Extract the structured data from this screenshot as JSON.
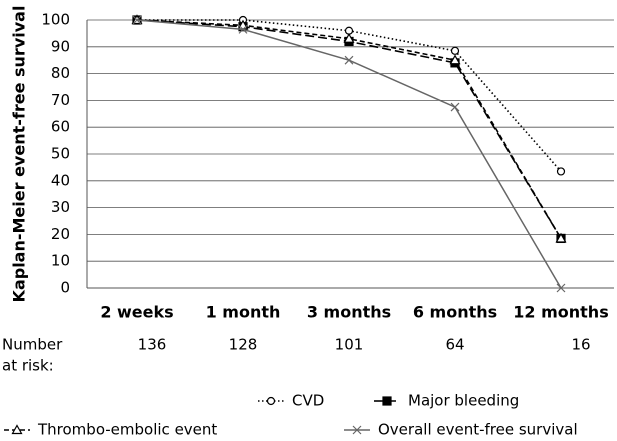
{
  "chart_data": {
    "type": "line",
    "y_label": "Kaplan-Meier event-free survival",
    "categories": [
      "2 weeks",
      "1 month",
      "3 months",
      "6 months",
      "12 months"
    ],
    "series": [
      {
        "name": "CVD",
        "color": "#000000",
        "values": [
          100,
          100,
          96,
          88.5,
          43.5
        ]
      },
      {
        "name": "Major bleeding",
        "color": "#000000",
        "values": [
          100,
          97.5,
          92,
          84,
          18.5
        ]
      },
      {
        "name": "Thrombo-embolic event",
        "color": "#000000",
        "values": [
          100,
          98,
          93,
          85,
          18.5
        ]
      },
      {
        "name": "Overall event-free survival",
        "color": "#666666",
        "values": [
          100,
          96.5,
          85,
          67.5,
          0
        ]
      }
    ],
    "ylim": [
      0,
      100
    ],
    "yticks": [
      0,
      10,
      20,
      30,
      40,
      50,
      60,
      70,
      80,
      90,
      100
    ],
    "grid": true,
    "risk_label": [
      "Number",
      "at risk:"
    ],
    "risk_values": [
      136,
      128,
      101,
      64,
      16
    ]
  }
}
